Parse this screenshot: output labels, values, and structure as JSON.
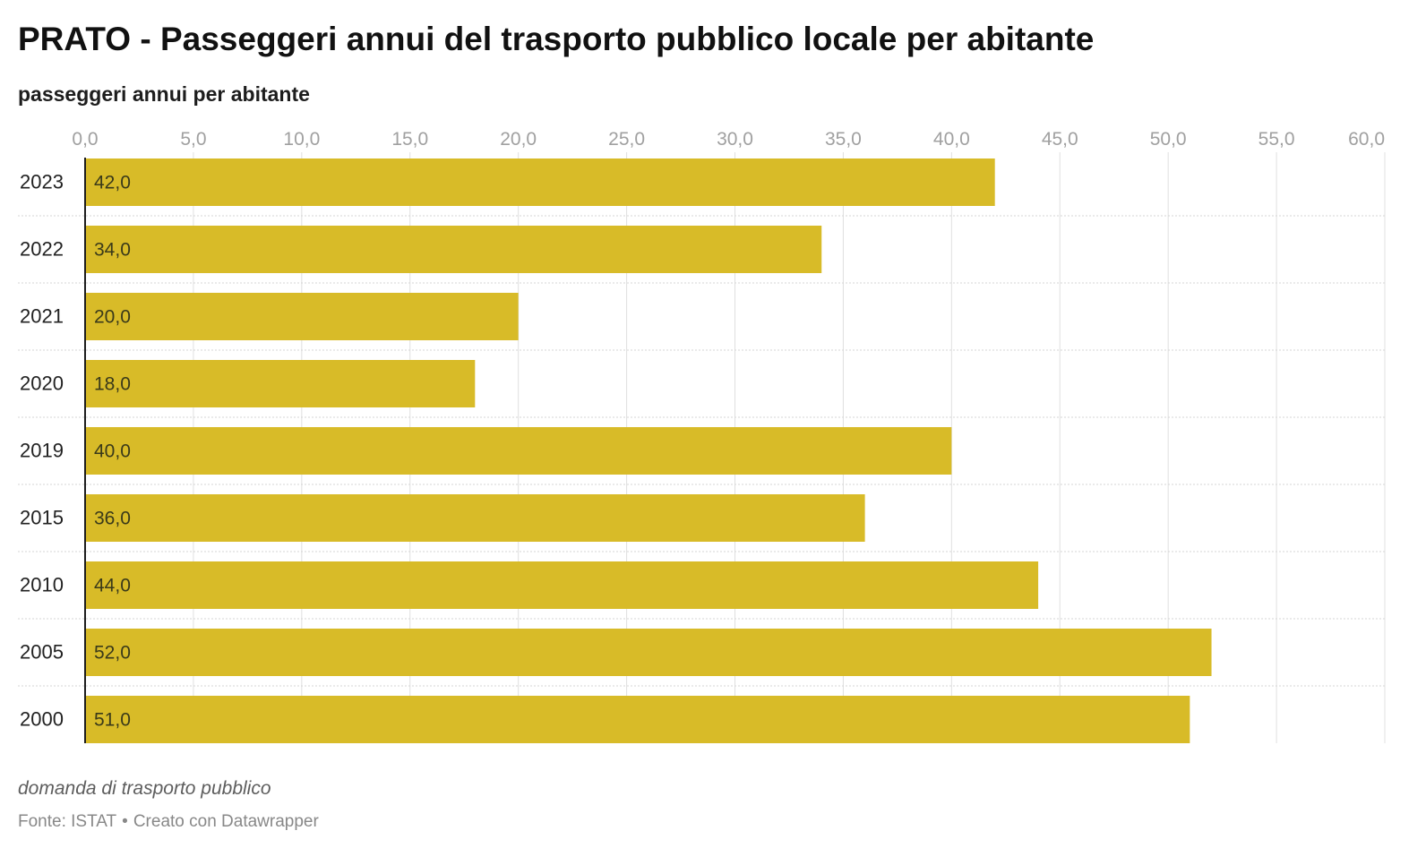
{
  "header": {
    "title": "PRATO - Passeggeri annui del trasporto pubblico locale per abitante",
    "subtitle": "passeggeri annui per abitante"
  },
  "footer": {
    "notes": "domanda di trasporto pubblico",
    "source": "Fonte: ISTAT",
    "separator": "•",
    "credit": "Creato con Datawrapper"
  },
  "colors": {
    "bar": "#d8bb28",
    "grid": "#e0e0e0",
    "row_separator": "#d6d6d6",
    "axis_tick_text": "#a0a0a0",
    "category_text": "#222222",
    "value_text": "#3a3a1a",
    "baseline": "#1d1d1d"
  },
  "chart_data": {
    "type": "bar",
    "orientation": "horizontal",
    "categories": [
      "2023",
      "2022",
      "2021",
      "2020",
      "2019",
      "2015",
      "2010",
      "2005",
      "2000"
    ],
    "values": [
      42,
      34,
      20,
      18,
      40,
      36,
      44,
      52,
      51
    ],
    "value_labels": [
      "42,0",
      "34,0",
      "20,0",
      "18,0",
      "40,0",
      "36,0",
      "44,0",
      "52,0",
      "51,0"
    ],
    "x_ticks": [
      "0,0",
      "5,0",
      "10,0",
      "15,0",
      "20,0",
      "25,0",
      "30,0",
      "35,0",
      "40,0",
      "45,0",
      "50,0",
      "55,0",
      "60,0"
    ],
    "tick_step": 5,
    "xlim": [
      0,
      60
    ],
    "xlabel": "",
    "ylabel": "",
    "grid": true,
    "axis_position": "top"
  }
}
